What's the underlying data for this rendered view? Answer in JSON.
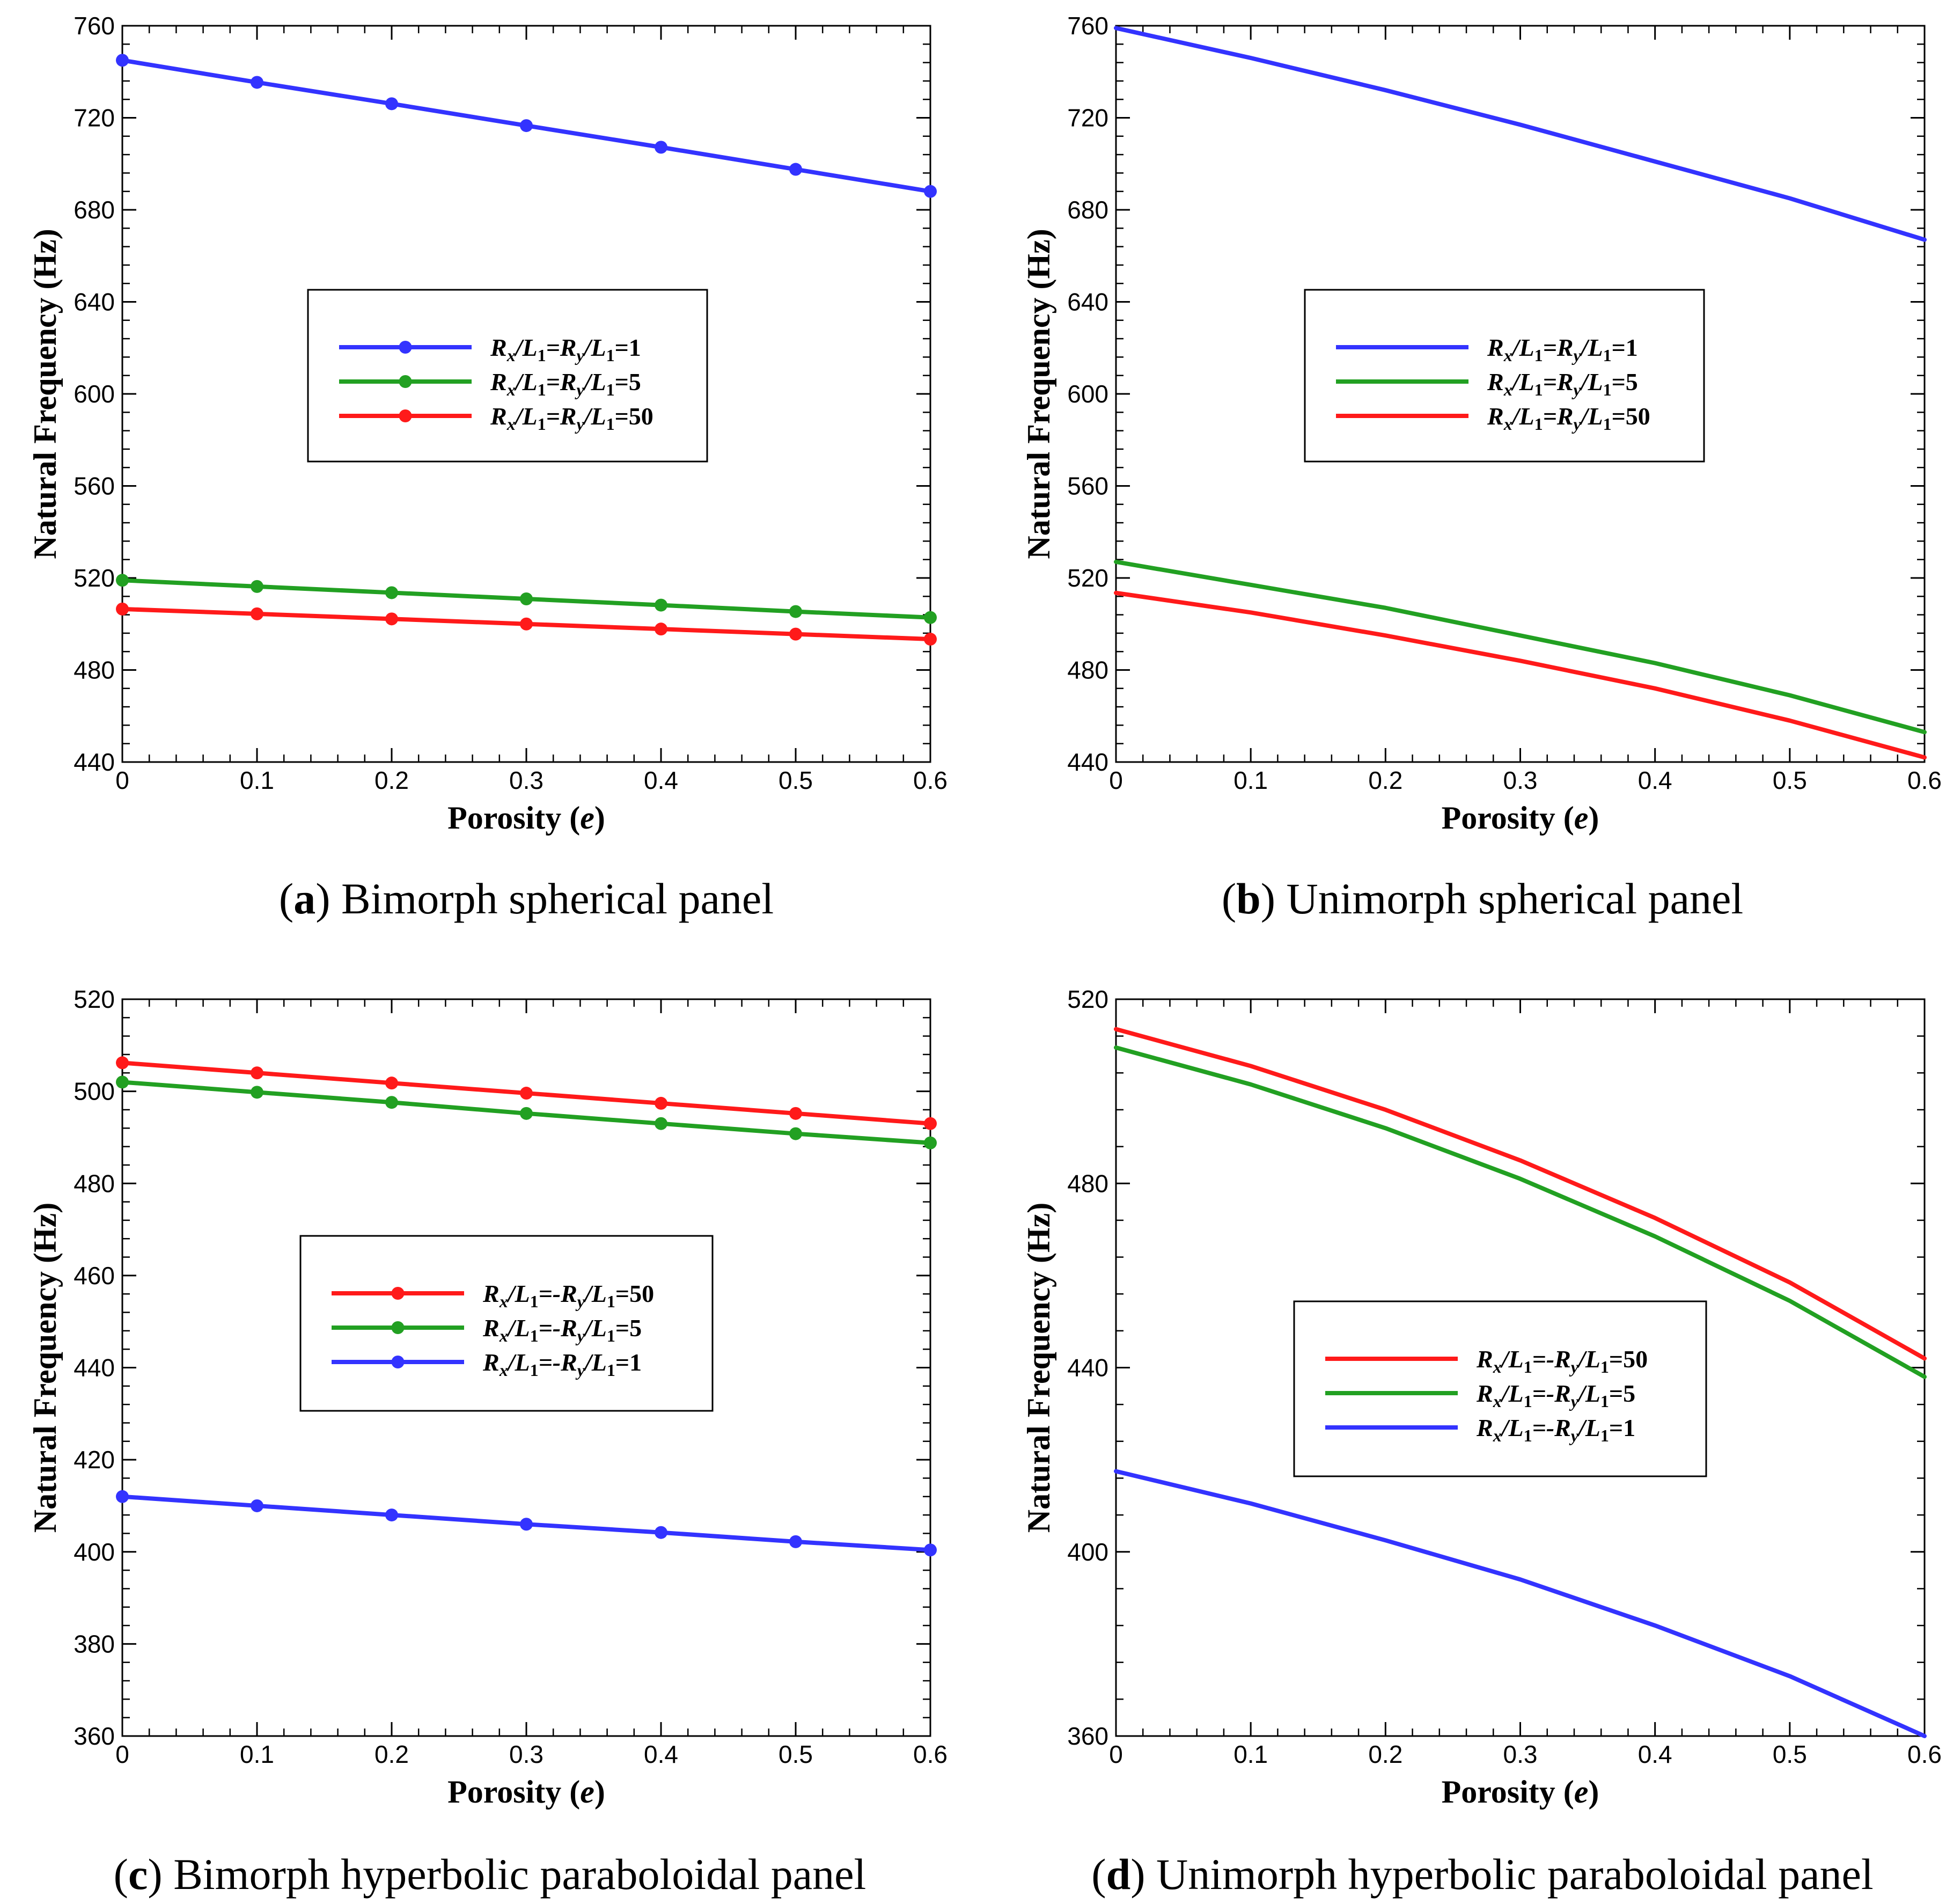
{
  "chart_data": [
    {
      "type": "line",
      "id": "a",
      "caption": {
        "letter": "a",
        "text": "Bimorph spherical panel"
      },
      "xlabel": {
        "main": "Porosity (",
        "var": "e",
        "close": ")"
      },
      "ylabel": "Natural Frequency (Hz)",
      "xlim": [
        0,
        0.6
      ],
      "ylim": [
        440,
        760
      ],
      "xticks": [
        "0",
        "0.1",
        "0.2",
        "0.3",
        "0.4",
        "0.5",
        "0.6"
      ],
      "yticks": [
        "440",
        "480",
        "520",
        "560",
        "600",
        "640",
        "680",
        "720",
        "760"
      ],
      "markers": true,
      "legend": {
        "position": "center"
      },
      "series": [
        {
          "name": "Rx/L1=Ry/L1=1",
          "label": {
            "r1": "R",
            "s1": "x",
            "m1": "/L",
            "s2": "1",
            "m2": "=R",
            "s3": "y",
            "m3": "/L",
            "s4": "1",
            "tail": "=1"
          },
          "color": "#3333ff",
          "x": [
            0,
            0.1,
            0.2,
            0.3,
            0.4,
            0.5,
            0.6
          ],
          "y": [
            745,
            735.4,
            726.1,
            716.6,
            707.2,
            697.6,
            688
          ]
        },
        {
          "name": "Rx/L1=Ry/L1=5",
          "label": {
            "r1": "R",
            "s1": "x",
            "m1": "/L",
            "s2": "1",
            "m2": "=R",
            "s3": "y",
            "m3": "/L",
            "s4": "1",
            "tail": "=5"
          },
          "color": "#22a022",
          "x": [
            0,
            0.1,
            0.2,
            0.3,
            0.4,
            0.5,
            0.6
          ],
          "y": [
            519,
            516.3,
            513.6,
            510.9,
            508.2,
            505.4,
            502.8
          ]
        },
        {
          "name": "Rx/L1=Ry/L1=50",
          "label": {
            "r1": "R",
            "s1": "x",
            "m1": "/L",
            "s2": "1",
            "m2": "=R",
            "s3": "y",
            "m3": "/L",
            "s4": "1",
            "tail": "=50"
          },
          "color": "#ff1a1a",
          "x": [
            0,
            0.1,
            0.2,
            0.3,
            0.4,
            0.5,
            0.6
          ],
          "y": [
            506.5,
            504.4,
            502.2,
            500,
            497.8,
            495.6,
            493.4
          ]
        }
      ]
    },
    {
      "type": "line",
      "id": "b",
      "caption": {
        "letter": "b",
        "text": "Unimorph spherical panel"
      },
      "xlabel": {
        "main": "Porosity (",
        "var": "e",
        "close": ")"
      },
      "ylabel": "Natural Frequency (Hz)",
      "xlim": [
        0,
        0.6
      ],
      "ylim": [
        440,
        760
      ],
      "xticks": [
        "0",
        "0.1",
        "0.2",
        "0.3",
        "0.4",
        "0.5",
        "0.6"
      ],
      "yticks": [
        "440",
        "480",
        "520",
        "560",
        "600",
        "640",
        "680",
        "720",
        "760"
      ],
      "markers": false,
      "legend": {
        "position": "center"
      },
      "series": [
        {
          "name": "Rx/L1=Ry/L1=1",
          "label": {
            "r1": "R",
            "s1": "x",
            "m1": "/L",
            "s2": "1",
            "m2": "=R",
            "s3": "y",
            "m3": "/L",
            "s4": "1",
            "tail": "=1"
          },
          "color": "#3333ff",
          "x": [
            0,
            0.1,
            0.2,
            0.3,
            0.4,
            0.5,
            0.6
          ],
          "y": [
            759,
            746,
            732,
            717,
            701,
            685,
            667
          ]
        },
        {
          "name": "Rx/L1=Ry/L1=5",
          "label": {
            "r1": "R",
            "s1": "x",
            "m1": "/L",
            "s2": "1",
            "m2": "=R",
            "s3": "y",
            "m3": "/L",
            "s4": "1",
            "tail": "=5"
          },
          "color": "#22a022",
          "x": [
            0,
            0.1,
            0.2,
            0.3,
            0.4,
            0.5,
            0.6
          ],
          "y": [
            527,
            517,
            507,
            495,
            483,
            469,
            453
          ]
        },
        {
          "name": "Rx/L1=Ry/L1=50",
          "label": {
            "r1": "R",
            "s1": "x",
            "m1": "/L",
            "s2": "1",
            "m2": "=R",
            "s3": "y",
            "m3": "/L",
            "s4": "1",
            "tail": "=50"
          },
          "color": "#ff1a1a",
          "x": [
            0,
            0.1,
            0.2,
            0.3,
            0.4,
            0.5,
            0.6
          ],
          "y": [
            513.5,
            505,
            495,
            484,
            472,
            458,
            442
          ]
        }
      ]
    },
    {
      "type": "line",
      "id": "c",
      "caption": {
        "letter": "c",
        "text": "Bimorph hyperbolic paraboloidal panel"
      },
      "xlabel": {
        "main": "Porosity (",
        "var": "e",
        "close": ")"
      },
      "ylabel": "Natural Frequency (Hz)",
      "xlim": [
        0,
        0.6
      ],
      "ylim": [
        360,
        520
      ],
      "xticks": [
        "0",
        "0.1",
        "0.2",
        "0.3",
        "0.4",
        "0.5",
        "0.6"
      ],
      "yticks": [
        "360",
        "380",
        "400",
        "420",
        "440",
        "460",
        "480",
        "500",
        "520"
      ],
      "markers": true,
      "legend": {
        "position": "center"
      },
      "series": [
        {
          "name": "Rx/L1=-Ry/L1=50",
          "label": {
            "r1": "R",
            "s1": "x",
            "m1": "/L",
            "s2": "1",
            "m2": "=-R",
            "s3": "y",
            "m3": "/L",
            "s4": "1",
            "tail": "=50"
          },
          "color": "#ff1a1a",
          "x": [
            0,
            0.1,
            0.2,
            0.3,
            0.4,
            0.5,
            0.6
          ],
          "y": [
            506.2,
            504,
            501.8,
            499.6,
            497.4,
            495.2,
            493
          ]
        },
        {
          "name": "Rx/L1=-Ry/L1=5",
          "label": {
            "r1": "R",
            "s1": "x",
            "m1": "/L",
            "s2": "1",
            "m2": "=-R",
            "s3": "y",
            "m3": "/L",
            "s4": "1",
            "tail": "=5"
          },
          "color": "#22a022",
          "x": [
            0,
            0.1,
            0.2,
            0.3,
            0.4,
            0.5,
            0.6
          ],
          "y": [
            502,
            499.8,
            497.6,
            495.2,
            493,
            490.8,
            488.8
          ]
        },
        {
          "name": "Rx/L1=-Ry/L1=1",
          "label": {
            "r1": "R",
            "s1": "x",
            "m1": "/L",
            "s2": "1",
            "m2": "=-R",
            "s3": "y",
            "m3": "/L",
            "s4": "1",
            "tail": "=1"
          },
          "color": "#3333ff",
          "x": [
            0,
            0.1,
            0.2,
            0.3,
            0.4,
            0.5,
            0.6
          ],
          "y": [
            412,
            410,
            408,
            406,
            404.2,
            402.2,
            400.4
          ]
        }
      ]
    },
    {
      "type": "line",
      "id": "d",
      "caption": {
        "letter": "d",
        "text": "Unimorph hyperbolic paraboloidal panel"
      },
      "xlabel": {
        "main": "Porosity (",
        "var": "e",
        "close": ")"
      },
      "ylabel": "Natural Frequency (Hz)",
      "xlim": [
        0,
        0.6
      ],
      "ylim": [
        360,
        520
      ],
      "xticks": [
        "0",
        "0.1",
        "0.2",
        "0.3",
        "0.4",
        "0.5",
        "0.6"
      ],
      "yticks": [
        "360",
        "400",
        "440",
        "480",
        "520"
      ],
      "markers": false,
      "legend": {
        "position": "center-left"
      },
      "series": [
        {
          "name": "Rx/L1=-Ry/L1=50",
          "label": {
            "r1": "R",
            "s1": "x",
            "m1": "/L",
            "s2": "1",
            "m2": "=-R",
            "s3": "y",
            "m3": "/L",
            "s4": "1",
            "tail": "=50"
          },
          "color": "#ff1a1a",
          "x": [
            0,
            0.1,
            0.2,
            0.3,
            0.4,
            0.5,
            0.6
          ],
          "y": [
            513.5,
            505.5,
            496,
            485,
            472.5,
            458.5,
            442
          ]
        },
        {
          "name": "Rx/L1=-Ry/L1=5",
          "label": {
            "r1": "R",
            "s1": "x",
            "m1": "/L",
            "s2": "1",
            "m2": "=-R",
            "s3": "y",
            "m3": "/L",
            "s4": "1",
            "tail": "=5"
          },
          "color": "#22a022",
          "x": [
            0,
            0.1,
            0.2,
            0.3,
            0.4,
            0.5,
            0.6
          ],
          "y": [
            509.5,
            501.5,
            492,
            481,
            468.5,
            454.5,
            438
          ]
        },
        {
          "name": "Rx/L1=-Ry/L1=1",
          "label": {
            "r1": "R",
            "s1": "x",
            "m1": "/L",
            "s2": "1",
            "m2": "=-R",
            "s3": "y",
            "m3": "/L",
            "s4": "1",
            "tail": "=1"
          },
          "color": "#3333ff",
          "x": [
            0,
            0.1,
            0.2,
            0.3,
            0.4,
            0.5,
            0.6
          ],
          "y": [
            417.5,
            410.5,
            402.5,
            394,
            384,
            373,
            360
          ]
        }
      ]
    }
  ]
}
